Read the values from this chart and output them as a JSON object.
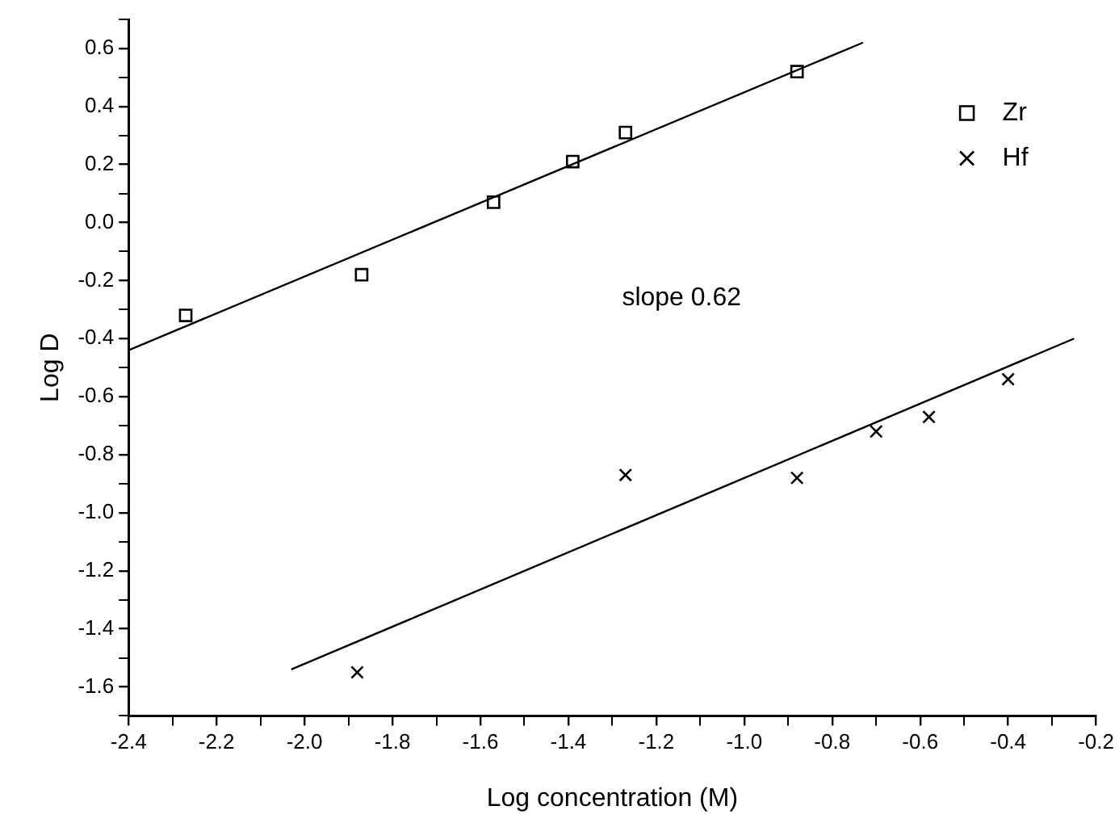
{
  "chart_data": {
    "type": "scatter",
    "xlabel": "Log concentration (M)",
    "ylabel": "Log D",
    "xlim": [
      -2.4,
      -0.2
    ],
    "ylim": [
      -1.7,
      0.7
    ],
    "xticks": [
      {
        "value": -2.4,
        "label": "-2.4"
      },
      {
        "value": -2.3,
        "label": null
      },
      {
        "value": -2.2,
        "label": "-2.2"
      },
      {
        "value": -2.1,
        "label": null
      },
      {
        "value": -2.0,
        "label": "-2.0"
      },
      {
        "value": -1.9,
        "label": null
      },
      {
        "value": -1.8,
        "label": "-1.8"
      },
      {
        "value": -1.7,
        "label": null
      },
      {
        "value": -1.6,
        "label": "-1.6"
      },
      {
        "value": -1.5,
        "label": null
      },
      {
        "value": -1.4,
        "label": "-1.4"
      },
      {
        "value": -1.3,
        "label": null
      },
      {
        "value": -1.2,
        "label": "-1.2"
      },
      {
        "value": -1.1,
        "label": null
      },
      {
        "value": -1.0,
        "label": "-1.0"
      },
      {
        "value": -0.9,
        "label": null
      },
      {
        "value": -0.8,
        "label": "-0.8"
      },
      {
        "value": -0.7,
        "label": null
      },
      {
        "value": -0.6,
        "label": "-0.6"
      },
      {
        "value": -0.5,
        "label": null
      },
      {
        "value": -0.4,
        "label": "-0.4"
      },
      {
        "value": -0.3,
        "label": null
      },
      {
        "value": -0.2,
        "label": "-0.2"
      }
    ],
    "yticks": [
      {
        "value": -1.7,
        "label": null
      },
      {
        "value": -1.6,
        "label": "-1.6"
      },
      {
        "value": -1.5,
        "label": null
      },
      {
        "value": -1.4,
        "label": "-1.4"
      },
      {
        "value": -1.3,
        "label": null
      },
      {
        "value": -1.2,
        "label": "-1.2"
      },
      {
        "value": -1.1,
        "label": null
      },
      {
        "value": -1.0,
        "label": "-1.0"
      },
      {
        "value": -0.9,
        "label": null
      },
      {
        "value": -0.8,
        "label": "-0.8"
      },
      {
        "value": -0.7,
        "label": null
      },
      {
        "value": -0.6,
        "label": "-0.6"
      },
      {
        "value": -0.5,
        "label": null
      },
      {
        "value": -0.4,
        "label": "-0.4"
      },
      {
        "value": -0.3,
        "label": null
      },
      {
        "value": -0.2,
        "label": "-0.2"
      },
      {
        "value": -0.1,
        "label": null
      },
      {
        "value": 0,
        "label": "0.0"
      },
      {
        "value": 0.1,
        "label": null
      },
      {
        "value": 0.2,
        "label": "0.2"
      },
      {
        "value": 0.3,
        "label": null
      },
      {
        "value": 0.4,
        "label": "0.4"
      },
      {
        "value": 0.5,
        "label": null
      },
      {
        "value": 0.6,
        "label": "0.6"
      },
      {
        "value": 0.7,
        "label": null
      }
    ],
    "grid": false,
    "legend": "top right",
    "annotations": [
      "slope 0.62"
    ],
    "series": [
      {
        "name": "Zr",
        "marker": "square",
        "color": "#000000",
        "x": [
          -2.27,
          -1.87,
          -1.57,
          -1.39,
          -1.27,
          -0.88
        ],
        "values": [
          -0.32,
          -0.18,
          0.07,
          0.21,
          0.31,
          0.52
        ]
      },
      {
        "name": "Hf",
        "marker": "cross",
        "color": "#000000",
        "x": [
          -1.88,
          -1.27,
          -0.88,
          -0.7,
          -0.58,
          -0.4
        ],
        "values": [
          -1.55,
          -0.87,
          -0.88,
          -0.72,
          -0.67,
          -0.54
        ]
      },
      {
        "type": "line",
        "marker": "none",
        "line_style": "solid",
        "color": "#000000",
        "x": [
          -2.4,
          -0.73
        ],
        "values": [
          -0.44,
          0.62
        ]
      },
      {
        "type": "line",
        "marker": "none",
        "line_style": "solid",
        "color": "#000000",
        "x": [
          -2.03,
          -0.25
        ],
        "values": [
          -1.54,
          -0.4
        ]
      }
    ]
  }
}
